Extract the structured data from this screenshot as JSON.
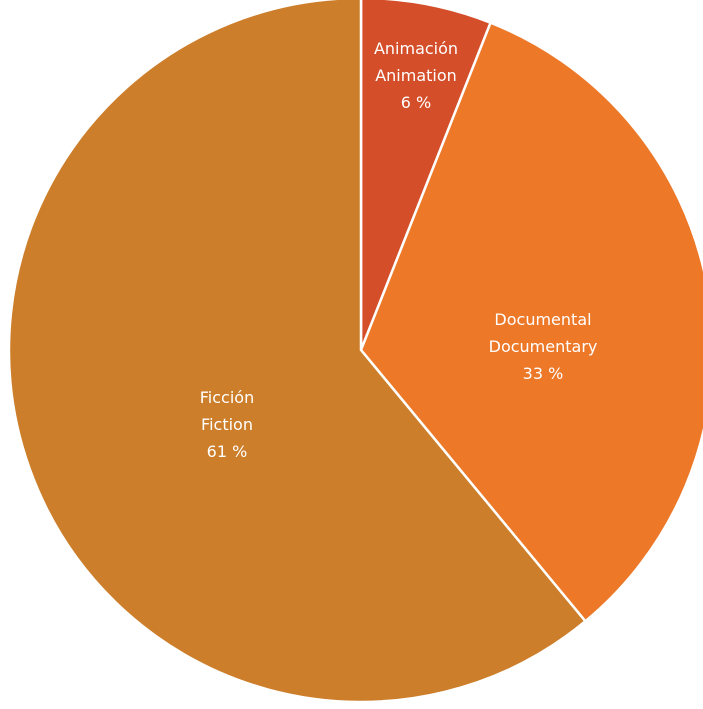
{
  "chart_data": {
    "type": "pie",
    "title": "",
    "start_angle_deg": 0,
    "direction": "clockwise",
    "slices": [
      {
        "label_es": "Animación",
        "label_en": "Animation",
        "value": 6,
        "display": "6 %",
        "color": "#D44E2A"
      },
      {
        "label_es": "Documental",
        "label_en": "Documentary",
        "value": 33,
        "display": "33 %",
        "color": "#EC7828"
      },
      {
        "label_es": "Ficción",
        "label_en": "Fiction",
        "value": 61,
        "display": "61 %",
        "color": "#CC7E2A"
      }
    ]
  }
}
